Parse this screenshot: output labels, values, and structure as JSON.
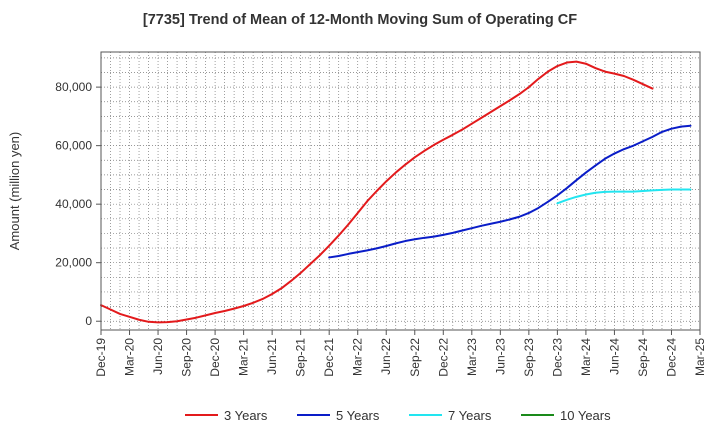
{
  "chart_data": {
    "type": "line",
    "title": "[7735]  Trend of Mean of 12-Month Moving Sum of Operating CF",
    "xlabel": "",
    "ylabel": "Amount (million yen)",
    "ylim": [
      -3000,
      92000
    ],
    "yticks": [
      0,
      20000,
      40000,
      60000,
      80000
    ],
    "ytick_labels": [
      "0",
      "20,000",
      "40,000",
      "60,000",
      "80,000"
    ],
    "xtick_labels": [
      "Dec-19",
      "Mar-20",
      "Jun-20",
      "Sep-20",
      "Dec-20",
      "Mar-21",
      "Jun-21",
      "Sep-21",
      "Dec-21",
      "Mar-22",
      "Jun-22",
      "Sep-22",
      "Dec-22",
      "Mar-23",
      "Jun-23",
      "Sep-23",
      "Dec-23",
      "Mar-24",
      "Jun-24",
      "Sep-24",
      "Dec-24",
      "Mar-25"
    ],
    "grid": true,
    "legend_position": "bottom",
    "series": [
      {
        "name": "3 Years",
        "color": "#e31a1c",
        "points": [
          [
            0,
            5500
          ],
          [
            1,
            4000
          ],
          [
            2,
            2500
          ],
          [
            3,
            1500
          ],
          [
            4,
            500
          ],
          [
            5,
            -200
          ],
          [
            6,
            -400
          ],
          [
            7,
            -300
          ],
          [
            8,
            0
          ],
          [
            9,
            600
          ],
          [
            10,
            1200
          ],
          [
            11,
            2000
          ],
          [
            12,
            2800
          ],
          [
            13,
            3500
          ],
          [
            14,
            4300
          ],
          [
            15,
            5200
          ],
          [
            16,
            6300
          ],
          [
            17,
            7600
          ],
          [
            18,
            9300
          ],
          [
            19,
            11300
          ],
          [
            20,
            13800
          ],
          [
            21,
            16500
          ],
          [
            22,
            19500
          ],
          [
            23,
            22500
          ],
          [
            24,
            25800
          ],
          [
            25,
            29300
          ],
          [
            26,
            33000
          ],
          [
            27,
            37000
          ],
          [
            28,
            41000
          ],
          [
            29,
            44500
          ],
          [
            30,
            47800
          ],
          [
            31,
            50800
          ],
          [
            32,
            53500
          ],
          [
            33,
            56000
          ],
          [
            34,
            58200
          ],
          [
            35,
            60200
          ],
          [
            36,
            62000
          ],
          [
            37,
            63700
          ],
          [
            38,
            65500
          ],
          [
            39,
            67500
          ],
          [
            40,
            69500
          ],
          [
            41,
            71500
          ],
          [
            42,
            73500
          ],
          [
            43,
            75500
          ],
          [
            44,
            77600
          ],
          [
            45,
            80000
          ],
          [
            46,
            82800
          ],
          [
            47,
            85300
          ],
          [
            48,
            87200
          ],
          [
            49,
            88400
          ],
          [
            50,
            88700
          ],
          [
            51,
            88000
          ],
          [
            52,
            86500
          ],
          [
            53,
            85300
          ],
          [
            54,
            84600
          ],
          [
            55,
            83800
          ],
          [
            56,
            82500
          ],
          [
            57,
            81000
          ],
          [
            58,
            79500
          ]
        ]
      },
      {
        "name": "5 Years",
        "color": "#0a1dc8",
        "points": [
          [
            24,
            21800
          ],
          [
            25,
            22300
          ],
          [
            26,
            23000
          ],
          [
            27,
            23600
          ],
          [
            28,
            24200
          ],
          [
            29,
            24900
          ],
          [
            30,
            25700
          ],
          [
            31,
            26600
          ],
          [
            32,
            27400
          ],
          [
            33,
            28000
          ],
          [
            34,
            28500
          ],
          [
            35,
            28900
          ],
          [
            36,
            29500
          ],
          [
            37,
            30200
          ],
          [
            38,
            31000
          ],
          [
            39,
            31800
          ],
          [
            40,
            32600
          ],
          [
            41,
            33300
          ],
          [
            42,
            34000
          ],
          [
            43,
            34800
          ],
          [
            44,
            35700
          ],
          [
            45,
            37000
          ],
          [
            46,
            38700
          ],
          [
            47,
            40800
          ],
          [
            48,
            43000
          ],
          [
            49,
            45500
          ],
          [
            50,
            48200
          ],
          [
            51,
            50800
          ],
          [
            52,
            53200
          ],
          [
            53,
            55500
          ],
          [
            54,
            57300
          ],
          [
            55,
            58800
          ],
          [
            56,
            60000
          ],
          [
            57,
            61500
          ],
          [
            58,
            63000
          ],
          [
            59,
            64700
          ],
          [
            60,
            65800
          ],
          [
            61,
            66500
          ],
          [
            62,
            66800
          ]
        ]
      },
      {
        "name": "7 Years",
        "color": "#22e5f0",
        "points": [
          [
            48,
            40300
          ],
          [
            49,
            41500
          ],
          [
            50,
            42500
          ],
          [
            51,
            43300
          ],
          [
            52,
            43900
          ],
          [
            53,
            44200
          ],
          [
            54,
            44300
          ],
          [
            55,
            44300
          ],
          [
            56,
            44300
          ],
          [
            57,
            44500
          ],
          [
            58,
            44700
          ],
          [
            59,
            44900
          ],
          [
            60,
            45000
          ],
          [
            61,
            45000
          ],
          [
            62,
            45000
          ]
        ]
      },
      {
        "name": "10 Years",
        "color": "#1a8a1a",
        "points": []
      }
    ]
  }
}
